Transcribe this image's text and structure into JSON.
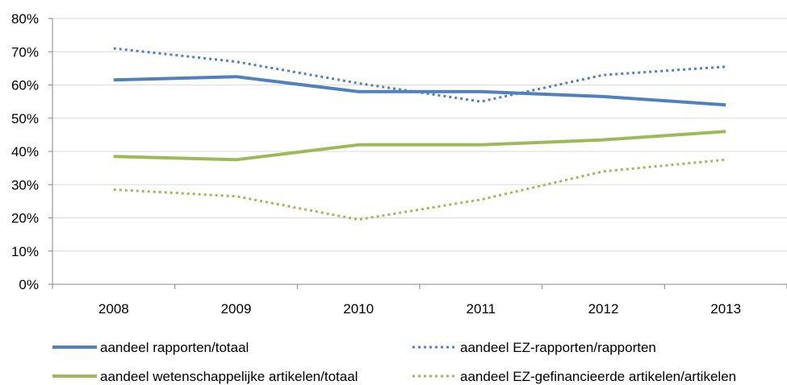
{
  "chart_data": {
    "type": "line",
    "title": "",
    "xlabel": "",
    "ylabel": "",
    "categories": [
      "2008",
      "2009",
      "2010",
      "2011",
      "2012",
      "2013"
    ],
    "y_ticks": [
      "0%",
      "10%",
      "20%",
      "30%",
      "40%",
      "50%",
      "60%",
      "70%",
      "80%"
    ],
    "ylim": [
      0,
      80
    ],
    "grid": "horizontal",
    "legend_position": "bottom",
    "series": [
      {
        "name": "aandeel rapporten/totaal",
        "values": [
          61.5,
          62.5,
          58,
          58,
          56.5,
          54
        ],
        "color": "#4F81BD",
        "style": "solid"
      },
      {
        "name": "aandeel EZ-rapporten/rapporten",
        "values": [
          71,
          67,
          60.5,
          55,
          63,
          65.5
        ],
        "color": "#4F81BD",
        "style": "dotted"
      },
      {
        "name": "aandeel wetenschappelijke artikelen/totaal",
        "values": [
          38.5,
          37.5,
          42,
          42,
          43.5,
          46
        ],
        "color": "#9BBB59",
        "style": "solid"
      },
      {
        "name": "aandeel EZ-gefinancieerde artikelen/artikelen",
        "values": [
          28.5,
          26.5,
          19.5,
          25.5,
          34,
          37.5
        ],
        "color": "#9BBB59",
        "style": "dotted"
      }
    ]
  }
}
